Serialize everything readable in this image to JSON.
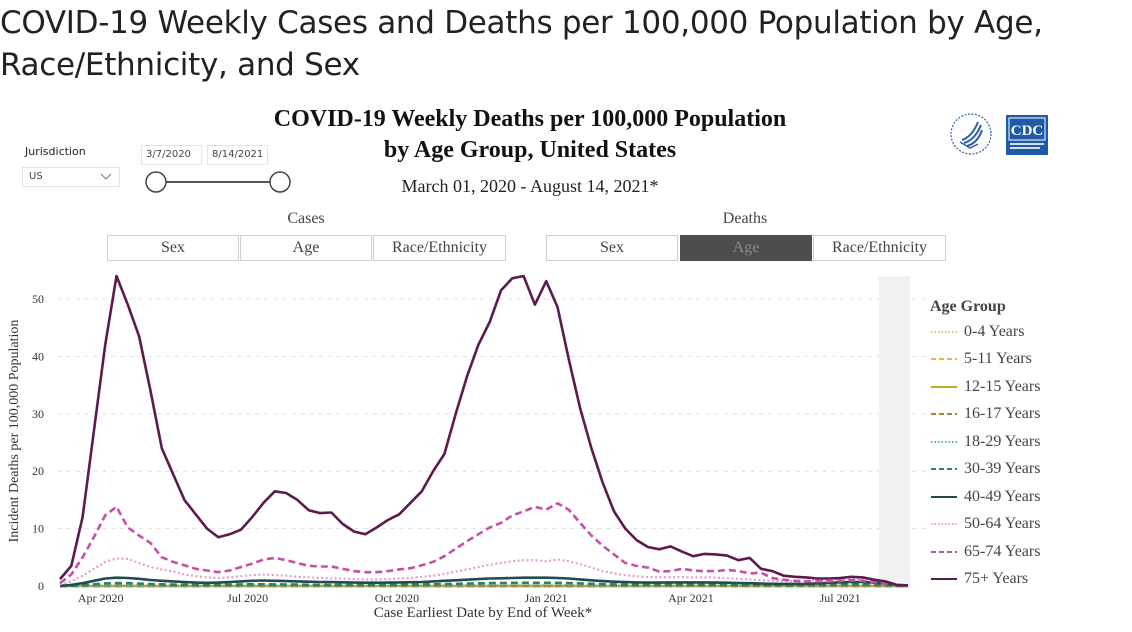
{
  "page": {
    "title": "COVID-19 Weekly Cases and Deaths per 100,000 Population by Age, Race/Ethnicity, and Sex"
  },
  "filters": {
    "jurisdiction_label": "Jurisdiction",
    "jurisdiction_value": "US",
    "date_start": "3/7/2020",
    "date_end": "8/14/2021",
    "slider_range": [
      0,
      1
    ]
  },
  "chart_header": {
    "title_line1": "COVID-19 Weekly Deaths per 100,000 Population",
    "title_line2": "by Age Group, United States",
    "subtitle": "March 01, 2020 - August 14, 2021*"
  },
  "logos": {
    "hhs": "hhs-eagle-logo",
    "cdc_text": "CDC"
  },
  "toggles": {
    "cases": {
      "label": "Cases",
      "tabs": [
        {
          "label": "Sex",
          "active": false
        },
        {
          "label": "Age",
          "active": false
        },
        {
          "label": "Race/Ethnicity",
          "active": false
        }
      ]
    },
    "deaths": {
      "label": "Deaths",
      "tabs": [
        {
          "label": "Sex",
          "active": false
        },
        {
          "label": "Age",
          "active": true
        },
        {
          "label": "Race/Ethnicity",
          "active": false
        }
      ]
    }
  },
  "chart_data": {
    "type": "line",
    "title": "COVID-19 Weekly Deaths per 100,000 Population by Age Group, United States",
    "xlabel": "Case Earliest Date by End of Week*",
    "ylabel": "Incident Deaths per 100,000 Population",
    "ylim": [
      0,
      55
    ],
    "yticks": [
      0,
      10,
      20,
      30,
      40,
      50
    ],
    "x_start": "2020-03-07",
    "x_end": "2021-08-14",
    "x_interval": "weekly",
    "xtick_labels": [
      "Apr 2020",
      "Jul 2020",
      "Oct 2020",
      "Jan 2021",
      "Apr 2021",
      "Jul 2021"
    ],
    "xtick_weeks": [
      3.6,
      16.6,
      29.8,
      43.0,
      55.8,
      69.0
    ],
    "grid": "horizontal-dashed",
    "shaded_region": {
      "from_week": 72.4,
      "to_week": 75,
      "meaning": "incomplete recent data"
    },
    "legend": {
      "title": "Age Group",
      "placement": "right"
    },
    "series": [
      {
        "name": "0-4 Years",
        "color": "#d9c97a",
        "dash": "dotted",
        "values": [
          0,
          0,
          0,
          0,
          0,
          0.01,
          0.01,
          0.01,
          0.01,
          0.01,
          0.01,
          0.01,
          0.01,
          0.01,
          0.01,
          0.01,
          0.01,
          0.01,
          0.01,
          0.01,
          0.01,
          0.01,
          0.01,
          0.01,
          0.01,
          0.01,
          0.01,
          0.01,
          0.01,
          0.01,
          0.01,
          0.01,
          0.01,
          0.01,
          0.01,
          0.01,
          0.01,
          0.01,
          0.01,
          0.01,
          0.01,
          0.01,
          0.01,
          0.01,
          0.01,
          0.01,
          0.01,
          0.01,
          0.01,
          0.01,
          0.01,
          0.01,
          0.01,
          0.01,
          0.01,
          0.01,
          0.01,
          0.01,
          0.01,
          0.01,
          0.01,
          0.01,
          0.01,
          0.01,
          0.01,
          0.01,
          0.01,
          0.01,
          0.01,
          0.01,
          0.01,
          0.01,
          0.01,
          0.01,
          0,
          0
        ]
      },
      {
        "name": "5-11 Years",
        "color": "#e0b93a",
        "dash": "dashed",
        "values": [
          0,
          0,
          0,
          0,
          0,
          0,
          0,
          0,
          0,
          0,
          0,
          0,
          0,
          0,
          0,
          0,
          0,
          0,
          0,
          0,
          0,
          0,
          0,
          0,
          0,
          0,
          0,
          0,
          0,
          0,
          0,
          0,
          0,
          0,
          0,
          0,
          0,
          0,
          0,
          0,
          0,
          0,
          0,
          0,
          0,
          0,
          0,
          0,
          0,
          0,
          0,
          0,
          0,
          0,
          0,
          0,
          0,
          0,
          0,
          0,
          0,
          0,
          0,
          0,
          0,
          0,
          0,
          0,
          0,
          0,
          0,
          0,
          0,
          0,
          0,
          0
        ]
      },
      {
        "name": "12-15 Years",
        "color": "#c9a227",
        "dash": "solid",
        "values": [
          0,
          0,
          0,
          0,
          0,
          0,
          0,
          0,
          0,
          0,
          0,
          0,
          0,
          0,
          0,
          0,
          0,
          0,
          0,
          0,
          0,
          0,
          0,
          0,
          0,
          0,
          0,
          0,
          0,
          0,
          0,
          0,
          0,
          0,
          0,
          0,
          0,
          0,
          0,
          0,
          0,
          0,
          0,
          0,
          0,
          0,
          0,
          0,
          0,
          0,
          0,
          0,
          0,
          0,
          0,
          0,
          0,
          0,
          0,
          0,
          0,
          0,
          0,
          0,
          0,
          0,
          0,
          0,
          0,
          0,
          0,
          0,
          0,
          0,
          0,
          0
        ]
      },
      {
        "name": "16-17 Years",
        "color": "#a8841c",
        "dash": "dashed",
        "values": [
          0,
          0,
          0,
          0,
          0,
          0,
          0,
          0,
          0,
          0,
          0,
          0,
          0,
          0,
          0,
          0,
          0,
          0,
          0,
          0,
          0,
          0,
          0,
          0,
          0,
          0,
          0,
          0,
          0,
          0,
          0,
          0,
          0,
          0,
          0,
          0,
          0,
          0,
          0,
          0,
          0,
          0,
          0,
          0,
          0,
          0,
          0,
          0,
          0,
          0,
          0,
          0,
          0,
          0,
          0,
          0,
          0,
          0,
          0,
          0,
          0,
          0,
          0,
          0,
          0,
          0,
          0,
          0,
          0,
          0,
          0,
          0,
          0,
          0,
          0,
          0
        ]
      },
      {
        "name": "18-29 Years",
        "color": "#4fb8b0",
        "dash": "dotted",
        "values": [
          0,
          0,
          0.02,
          0.04,
          0.06,
          0.07,
          0.07,
          0.06,
          0.05,
          0.04,
          0.04,
          0.04,
          0.04,
          0.04,
          0.05,
          0.06,
          0.07,
          0.08,
          0.08,
          0.07,
          0.07,
          0.06,
          0.06,
          0.06,
          0.05,
          0.05,
          0.05,
          0.05,
          0.05,
          0.05,
          0.05,
          0.06,
          0.06,
          0.07,
          0.08,
          0.09,
          0.1,
          0.11,
          0.12,
          0.13,
          0.13,
          0.13,
          0.13,
          0.13,
          0.13,
          0.12,
          0.1,
          0.08,
          0.07,
          0.06,
          0.06,
          0.06,
          0.06,
          0.06,
          0.06,
          0.06,
          0.06,
          0.06,
          0.06,
          0.06,
          0.05,
          0.05,
          0.05,
          0.05,
          0.05,
          0.05,
          0.05,
          0.06,
          0.07,
          0.08,
          0.08,
          0.08,
          0.07,
          0.05,
          0.02,
          0.01
        ]
      },
      {
        "name": "30-39 Years",
        "color": "#2e7d6e",
        "dash": "dashed",
        "values": [
          0,
          0.05,
          0.15,
          0.3,
          0.45,
          0.5,
          0.48,
          0.42,
          0.35,
          0.3,
          0.25,
          0.22,
          0.2,
          0.2,
          0.22,
          0.25,
          0.28,
          0.3,
          0.3,
          0.28,
          0.26,
          0.24,
          0.22,
          0.2,
          0.2,
          0.2,
          0.2,
          0.2,
          0.2,
          0.21,
          0.22,
          0.24,
          0.26,
          0.3,
          0.33,
          0.37,
          0.42,
          0.46,
          0.5,
          0.52,
          0.54,
          0.55,
          0.55,
          0.55,
          0.54,
          0.5,
          0.45,
          0.38,
          0.32,
          0.28,
          0.25,
          0.23,
          0.22,
          0.22,
          0.22,
          0.22,
          0.22,
          0.22,
          0.22,
          0.22,
          0.2,
          0.19,
          0.17,
          0.15,
          0.14,
          0.14,
          0.15,
          0.18,
          0.22,
          0.27,
          0.3,
          0.3,
          0.25,
          0.18,
          0.08,
          0.03
        ]
      },
      {
        "name": "40-49 Years",
        "color": "#1f4e4a",
        "dash": "solid",
        "values": [
          0.05,
          0.2,
          0.5,
          0.9,
          1.3,
          1.45,
          1.4,
          1.25,
          1.05,
          0.9,
          0.8,
          0.7,
          0.6,
          0.55,
          0.6,
          0.7,
          0.8,
          0.9,
          0.95,
          0.9,
          0.85,
          0.8,
          0.75,
          0.7,
          0.68,
          0.65,
          0.6,
          0.58,
          0.58,
          0.6,
          0.62,
          0.66,
          0.7,
          0.8,
          0.9,
          1.0,
          1.1,
          1.2,
          1.3,
          1.35,
          1.4,
          1.45,
          1.45,
          1.45,
          1.4,
          1.3,
          1.15,
          1.0,
          0.85,
          0.75,
          0.68,
          0.62,
          0.6,
          0.6,
          0.62,
          0.62,
          0.62,
          0.62,
          0.6,
          0.58,
          0.52,
          0.48,
          0.42,
          0.38,
          0.36,
          0.36,
          0.38,
          0.45,
          0.55,
          0.65,
          0.7,
          0.7,
          0.6,
          0.4,
          0.18,
          0.05
        ]
      },
      {
        "name": "50-64 Years",
        "color": "#e79bd0",
        "dash": "dotted",
        "values": [
          0.3,
          0.8,
          1.8,
          3.0,
          4.2,
          4.8,
          4.7,
          4.0,
          3.3,
          2.9,
          2.5,
          2.0,
          1.7,
          1.5,
          1.4,
          1.5,
          1.7,
          1.9,
          2.0,
          1.9,
          1.8,
          1.6,
          1.5,
          1.4,
          1.35,
          1.3,
          1.2,
          1.15,
          1.15,
          1.2,
          1.3,
          1.4,
          1.6,
          1.8,
          2.1,
          2.5,
          2.9,
          3.3,
          3.7,
          4.0,
          4.3,
          4.5,
          4.5,
          4.3,
          4.6,
          4.3,
          3.8,
          3.2,
          2.6,
          2.2,
          1.9,
          1.7,
          1.55,
          1.5,
          1.55,
          1.55,
          1.5,
          1.5,
          1.45,
          1.4,
          1.25,
          1.15,
          1.0,
          0.9,
          0.85,
          0.85,
          0.9,
          1.0,
          1.1,
          1.2,
          1.25,
          1.2,
          1.0,
          0.7,
          0.3,
          0.1
        ]
      },
      {
        "name": "65-74 Years",
        "color": "#c74fa4",
        "dash": "dashed",
        "values": [
          0.5,
          2.0,
          5.0,
          8.5,
          12.3,
          13.8,
          10.2,
          8.8,
          7.5,
          5.0,
          4.2,
          3.6,
          3.0,
          2.7,
          2.4,
          2.7,
          3.3,
          3.9,
          4.6,
          4.9,
          4.5,
          4.0,
          3.5,
          3.4,
          3.4,
          3.0,
          2.6,
          2.4,
          2.4,
          2.6,
          2.9,
          3.1,
          3.6,
          4.2,
          5.2,
          6.5,
          7.8,
          9.0,
          10.2,
          11.0,
          12.3,
          13.0,
          13.8,
          13.3,
          14.4,
          13.3,
          11.0,
          8.8,
          7.0,
          5.5,
          4.0,
          3.5,
          3.2,
          2.5,
          2.6,
          3.0,
          2.7,
          2.6,
          2.6,
          2.8,
          2.6,
          2.2,
          2.3,
          1.4,
          1.1,
          0.9,
          0.8,
          0.8,
          0.8,
          0.9,
          1.0,
          0.9,
          0.7,
          0.4,
          0.15,
          0.05
        ]
      },
      {
        "name": "75+ Years",
        "color": "#5e1a4b",
        "dash": "solid",
        "values": [
          1.2,
          3.5,
          12,
          27,
          42,
          54,
          49,
          43.5,
          34,
          24,
          19.5,
          15,
          12.5,
          10,
          8.5,
          9,
          9.8,
          12,
          14.5,
          16.5,
          16.2,
          15,
          13.2,
          12.7,
          12.8,
          10.8,
          9.5,
          9,
          10.2,
          11.5,
          12.5,
          14.5,
          16.5,
          20,
          23,
          30,
          36.5,
          42,
          46,
          51.5,
          53.6,
          54,
          49,
          53.1,
          48.6,
          39.5,
          31,
          24,
          18,
          13,
          10,
          8,
          6.8,
          6.4,
          6.9,
          6,
          5.2,
          5.6,
          5.5,
          5.3,
          4.5,
          4.9,
          3,
          2.6,
          1.8,
          1.6,
          1.5,
          1.3,
          1.3,
          1.4,
          1.6,
          1.5,
          1.1,
          0.8,
          0.2,
          0.1
        ]
      }
    ]
  }
}
